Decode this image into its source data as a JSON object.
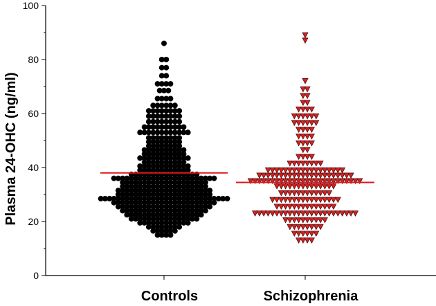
{
  "chart_data": {
    "type": "scatter",
    "subtype": "dot-plot",
    "title": "",
    "xlabel": "",
    "ylabel": "Plasma 24-OHC (ng/ml)",
    "ylim": [
      0,
      100
    ],
    "yticks": [
      "0",
      "20",
      "40",
      "60",
      "80",
      "100"
    ],
    "categories": [
      "Controls",
      "Schizophrenia"
    ],
    "series": [
      {
        "name": "Controls",
        "marker": "circle",
        "color": "#000000",
        "mean": 38,
        "mean_color": "#e0161b",
        "bins": [
          {
            "y": 15,
            "n": 4
          },
          {
            "y": 16.5,
            "n": 6
          },
          {
            "y": 18,
            "n": 8
          },
          {
            "y": 19.5,
            "n": 12
          },
          {
            "y": 21,
            "n": 16
          },
          {
            "y": 22.5,
            "n": 18
          },
          {
            "y": 24,
            "n": 20
          },
          {
            "y": 25.5,
            "n": 22
          },
          {
            "y": 27,
            "n": 24
          },
          {
            "y": 28.5,
            "n": 30
          },
          {
            "y": 30,
            "n": 22
          },
          {
            "y": 31.5,
            "n": 22
          },
          {
            "y": 33,
            "n": 20
          },
          {
            "y": 34.5,
            "n": 20
          },
          {
            "y": 36,
            "n": 24
          },
          {
            "y": 37.5,
            "n": 16
          },
          {
            "y": 39,
            "n": 12
          },
          {
            "y": 40.5,
            "n": 12
          },
          {
            "y": 42,
            "n": 10
          },
          {
            "y": 43.5,
            "n": 12
          },
          {
            "y": 45,
            "n": 10
          },
          {
            "y": 46.5,
            "n": 10
          },
          {
            "y": 48,
            "n": 8
          },
          {
            "y": 49.5,
            "n": 8
          },
          {
            "y": 51,
            "n": 8
          },
          {
            "y": 53,
            "n": 12
          },
          {
            "y": 55,
            "n": 10
          },
          {
            "y": 57,
            "n": 8
          },
          {
            "y": 59,
            "n": 8
          },
          {
            "y": 61,
            "n": 8
          },
          {
            "y": 63,
            "n": 6
          },
          {
            "y": 65.5,
            "n": 4
          },
          {
            "y": 68.5,
            "n": 3
          },
          {
            "y": 71,
            "n": 4
          },
          {
            "y": 74,
            "n": 2
          },
          {
            "y": 77,
            "n": 2
          },
          {
            "y": 80,
            "n": 2
          },
          {
            "y": 86,
            "n": 1
          }
        ]
      },
      {
        "name": "Schizophrenia",
        "marker": "triangle-down",
        "color": "#d42020",
        "mean": 34.5,
        "mean_color": "#e0161b",
        "bins": [
          {
            "y": 13,
            "n": 4
          },
          {
            "y": 15.5,
            "n": 6
          },
          {
            "y": 18,
            "n": 8
          },
          {
            "y": 20.5,
            "n": 10
          },
          {
            "y": 23,
            "n": 24
          },
          {
            "y": 25.5,
            "n": 14
          },
          {
            "y": 28,
            "n": 16
          },
          {
            "y": 30.5,
            "n": 12
          },
          {
            "y": 33,
            "n": 14
          },
          {
            "y": 35,
            "n": 26
          },
          {
            "y": 37,
            "n": 22
          },
          {
            "y": 39,
            "n": 18
          },
          {
            "y": 41.5,
            "n": 8
          },
          {
            "y": 44,
            "n": 4
          },
          {
            "y": 46.5,
            "n": 2
          },
          {
            "y": 49,
            "n": 4
          },
          {
            "y": 51.5,
            "n": 4
          },
          {
            "y": 54,
            "n": 4
          },
          {
            "y": 56.5,
            "n": 6
          },
          {
            "y": 59,
            "n": 6
          },
          {
            "y": 61.5,
            "n": 4
          },
          {
            "y": 64,
            "n": 2
          },
          {
            "y": 66.5,
            "n": 2
          },
          {
            "y": 69,
            "n": 2
          },
          {
            "y": 72,
            "n": 1
          },
          {
            "y": 87,
            "n": 1
          },
          {
            "y": 89,
            "n": 1
          }
        ]
      }
    ]
  }
}
